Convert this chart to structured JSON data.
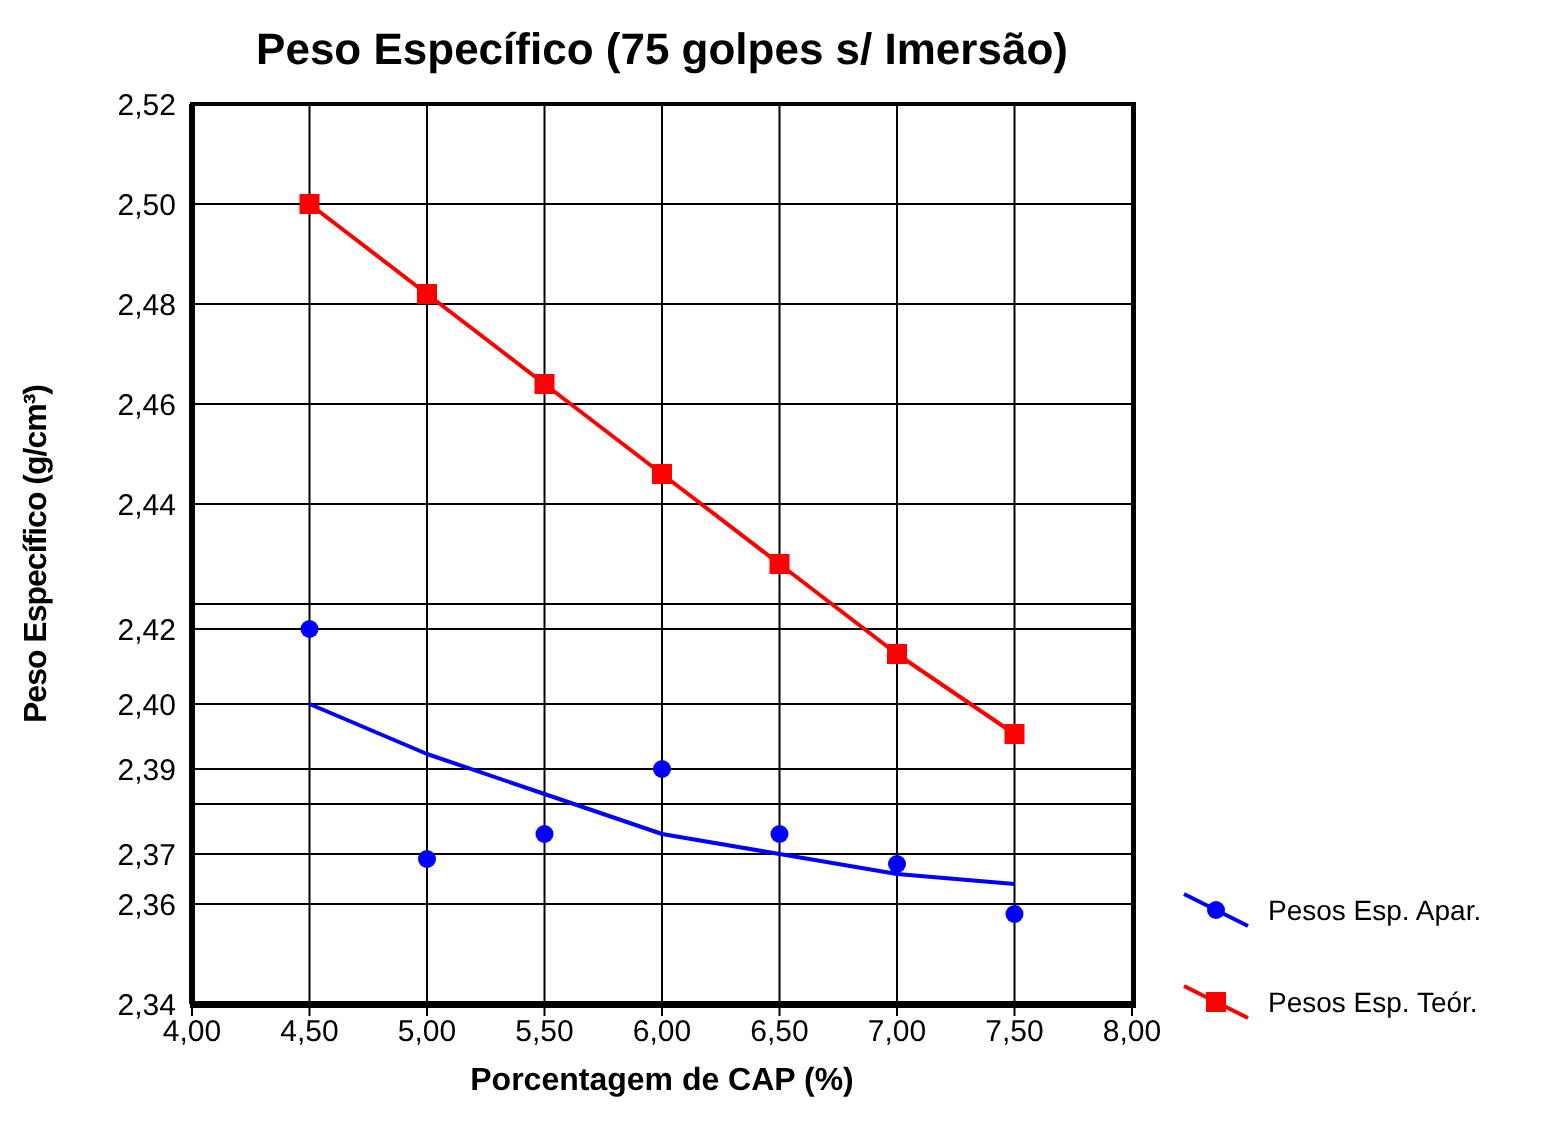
{
  "chart_data": {
    "type": "line",
    "title": "Peso Específico (75 golpes s/ Imersão)",
    "xlabel": "Porcentagem de CAP (%)",
    "ylabel": "Peso Específico (g/cm³)",
    "xlim": [
      4,
      8
    ],
    "xticks": [
      {
        "value": 4,
        "label": "4,00"
      },
      {
        "value": 4.5,
        "label": "4,50"
      },
      {
        "value": 5,
        "label": "5,00"
      },
      {
        "value": 5.5,
        "label": "5,50"
      },
      {
        "value": 6,
        "label": "6,00"
      },
      {
        "value": 6.5,
        "label": "6,50"
      },
      {
        "value": 7,
        "label": "7,00"
      },
      {
        "value": 7.5,
        "label": "7,50"
      },
      {
        "value": 8,
        "label": "8,00"
      }
    ],
    "ylim": [
      2.34,
      2.52
    ],
    "yticks": [
      {
        "value": 2.34,
        "label": "2,34"
      },
      {
        "value": 2.36,
        "label": "2,36"
      },
      {
        "value": 2.37,
        "label": "2,37"
      },
      {
        "value": 2.38,
        "label": null
      },
      {
        "value": 2.387,
        "label": "2,39"
      },
      {
        "value": 2.4,
        "label": "2,40"
      },
      {
        "value": 2.415,
        "label": "2,42"
      },
      {
        "value": 2.42,
        "label": null
      },
      {
        "value": 2.44,
        "label": "2,44"
      },
      {
        "value": 2.46,
        "label": "2,46"
      },
      {
        "value": 2.48,
        "label": "2,48"
      },
      {
        "value": 2.5,
        "label": "2,50"
      },
      {
        "value": 2.52,
        "label": "2,52"
      }
    ],
    "grid": true,
    "legend": "bottom right",
    "x": [
      4.5,
      5,
      5.5,
      6,
      6.5,
      7,
      7.5
    ],
    "series": [
      {
        "name": "Pesos Esp. Apar.",
        "type": "scatter",
        "marker": "circle",
        "color": "#0000ff",
        "values": [
          2.415,
          2.369,
          2.374,
          2.387,
          2.374,
          2.368,
          2.358
        ]
      },
      {
        "type": "line",
        "marker": "none",
        "color": "#0000ff",
        "values": [
          2.4,
          2.39,
          2.382,
          2.374,
          2.37,
          2.366,
          2.364
        ]
      },
      {
        "name": "Pesos Esp. Teór.",
        "marker": "square",
        "color": "#ff0000",
        "values": [
          2.5,
          2.482,
          2.464,
          2.446,
          2.428,
          2.41,
          2.394
        ]
      }
    ]
  }
}
